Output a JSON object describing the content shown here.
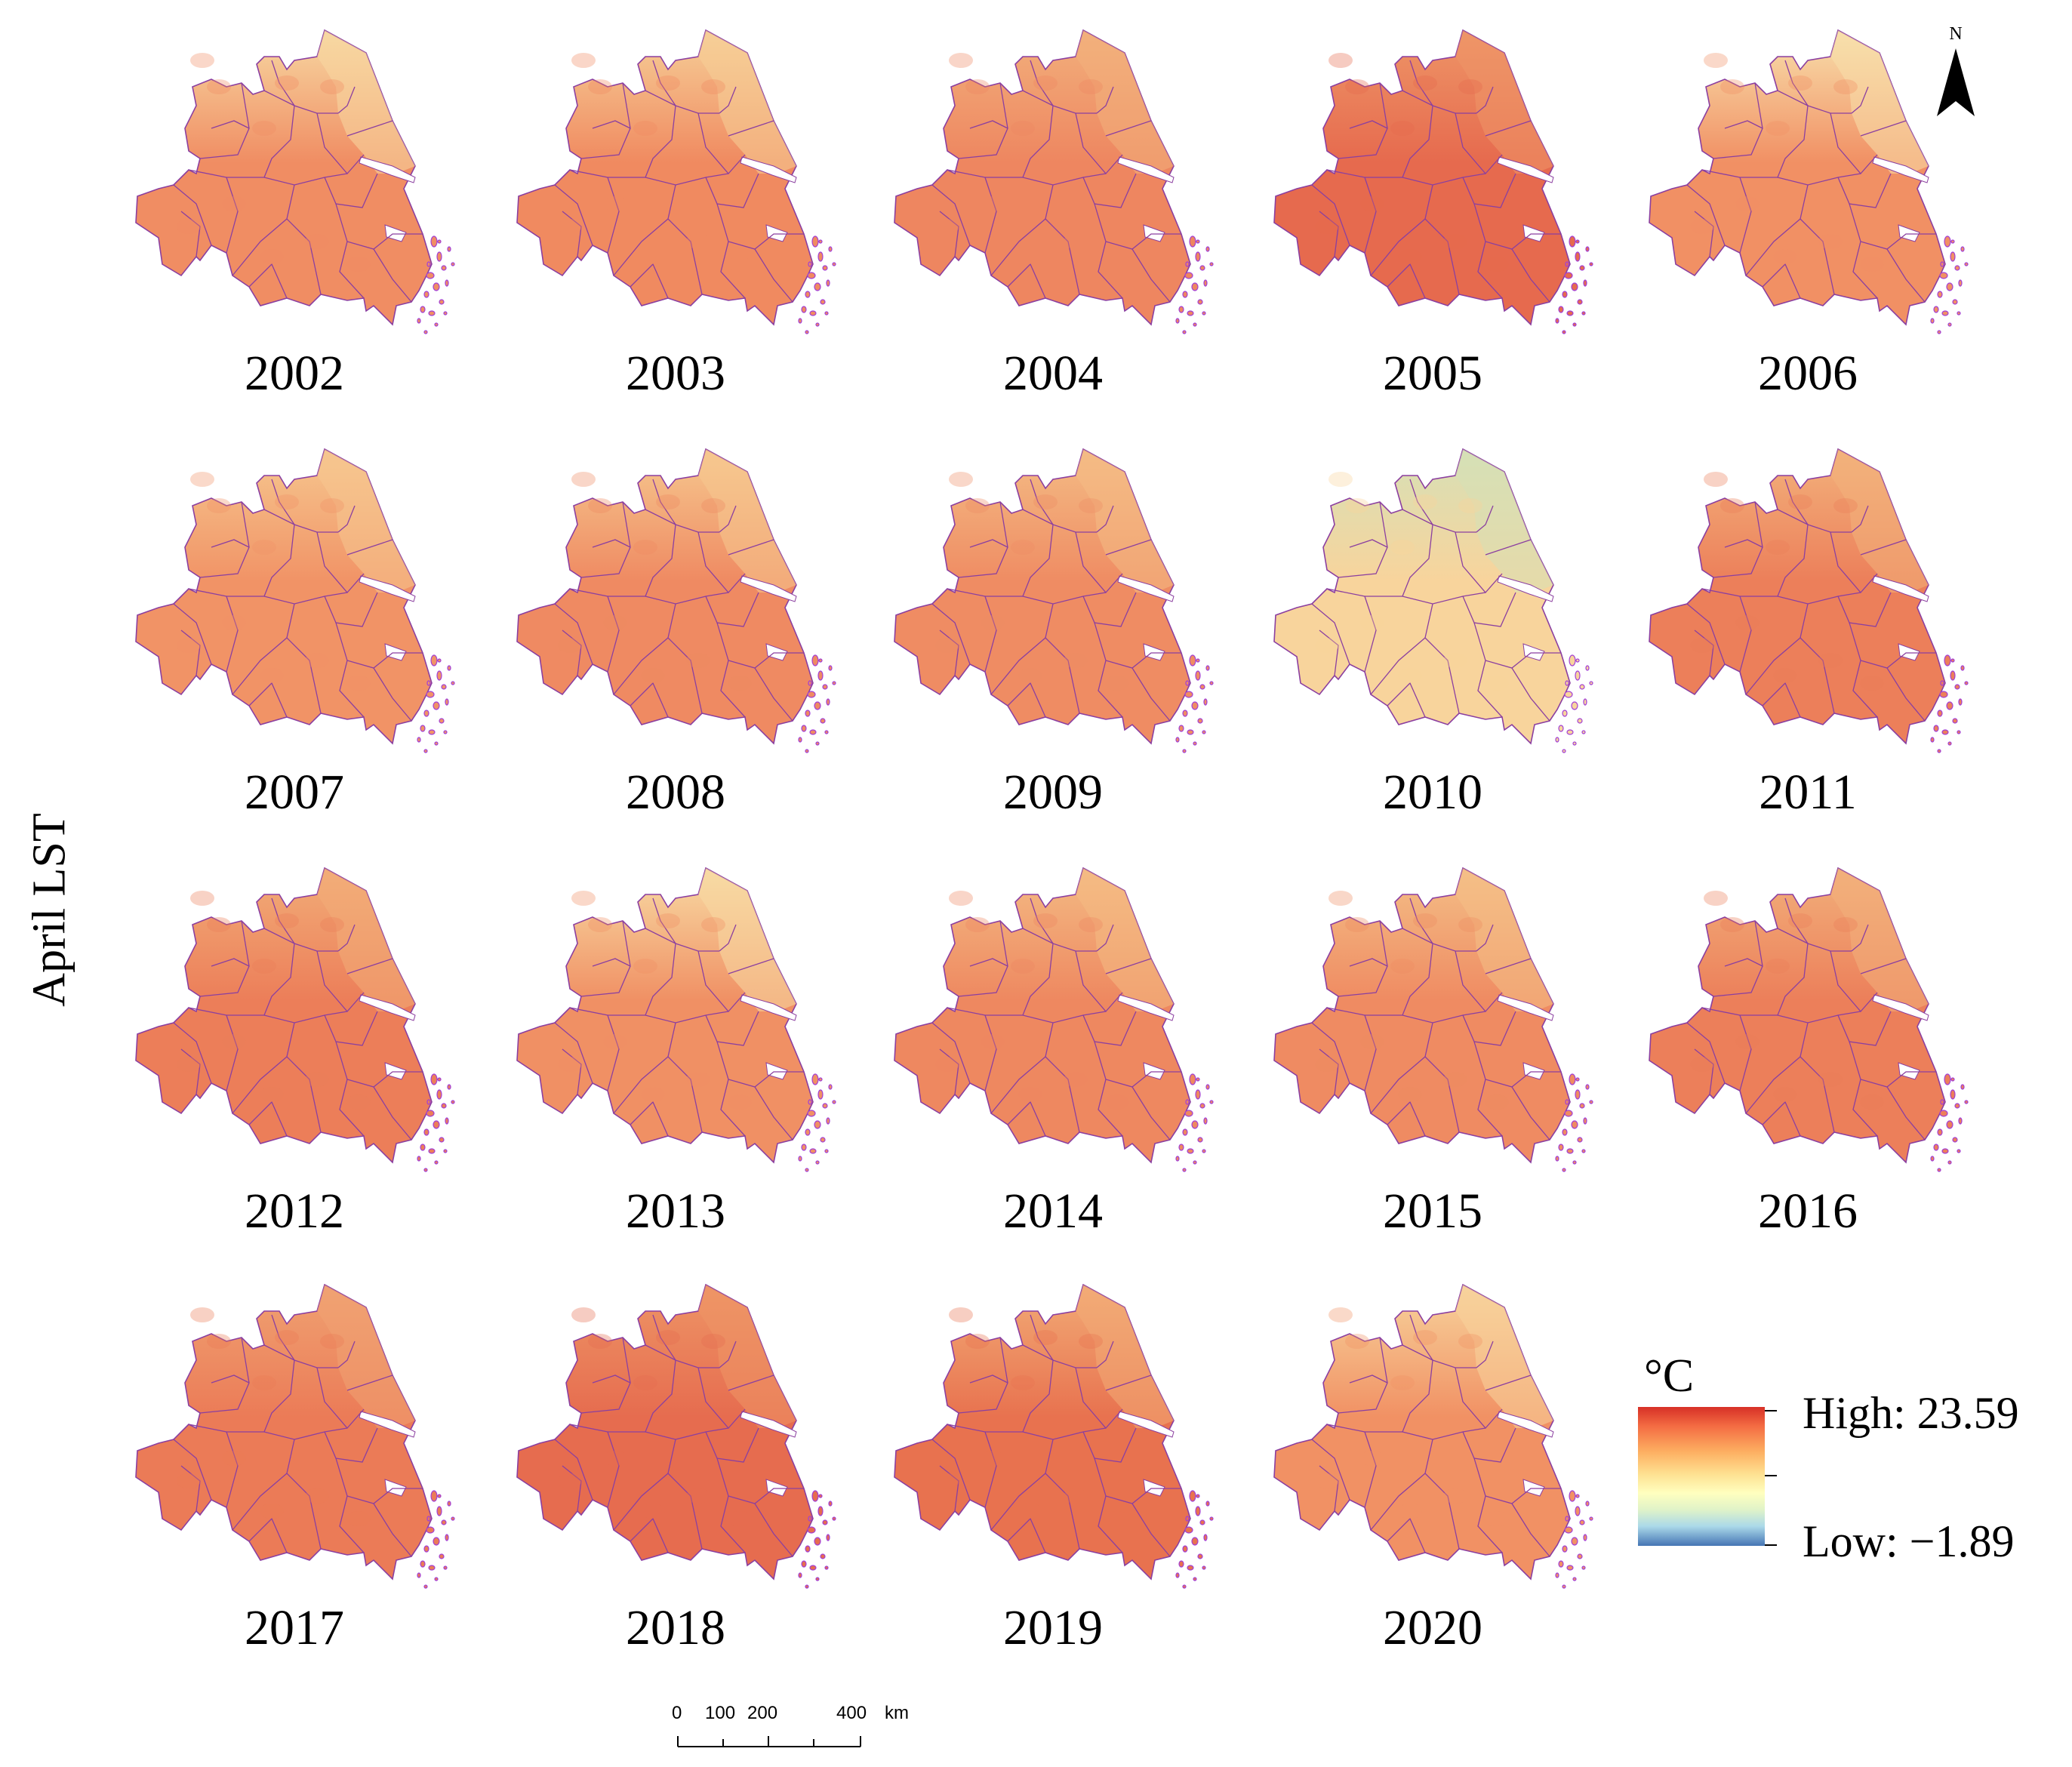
{
  "figure": {
    "ylabel": "April LST"
  },
  "panels": [
    {
      "year": "2002",
      "tone": "#f08d63",
      "north_tone": "#f7d8a2"
    },
    {
      "year": "2003",
      "tone": "#f08a60",
      "north_tone": "#f6cf98"
    },
    {
      "year": "2004",
      "tone": "#ee8660",
      "north_tone": "#f2b07c"
    },
    {
      "year": "2005",
      "tone": "#e66a4e",
      "north_tone": "#ee9567"
    },
    {
      "year": "2006",
      "tone": "#f19064",
      "north_tone": "#f8e0ac"
    },
    {
      "year": "2007",
      "tone": "#f19366",
      "north_tone": "#f6c78f"
    },
    {
      "year": "2008",
      "tone": "#ef8a62",
      "north_tone": "#f6c88f"
    },
    {
      "year": "2009",
      "tone": "#ef8c63",
      "north_tone": "#f4bc85"
    },
    {
      "year": "2010",
      "tone": "#f8d49c",
      "north_tone": "#d6e0b6"
    },
    {
      "year": "2011",
      "tone": "#ec7f5a",
      "north_tone": "#f3b27c"
    },
    {
      "year": "2012",
      "tone": "#ec7e59",
      "north_tone": "#f2ad78"
    },
    {
      "year": "2013",
      "tone": "#f09064",
      "north_tone": "#f8dba4"
    },
    {
      "year": "2014",
      "tone": "#ee8860",
      "north_tone": "#f4bb84"
    },
    {
      "year": "2015",
      "tone": "#ef8b62",
      "north_tone": "#f4bf87"
    },
    {
      "year": "2016",
      "tone": "#ec7f5a",
      "north_tone": "#f2b07b"
    },
    {
      "year": "2017",
      "tone": "#eb7b57",
      "north_tone": "#f0a272"
    },
    {
      "year": "2018",
      "tone": "#e66c4f",
      "north_tone": "#ee9566"
    },
    {
      "year": "2019",
      "tone": "#e8724f",
      "north_tone": "#f2ab76"
    },
    {
      "year": "2020",
      "tone": "#f19164",
      "north_tone": "#f7d39c"
    }
  ],
  "legend": {
    "unit": "°C",
    "high_label": "High: 23.59",
    "low_label": "Low: −1.89",
    "high_value": 23.59,
    "low_value": -1.89,
    "colors": [
      "#d73027",
      "#f46d43",
      "#fdae61",
      "#fee090",
      "#ffffbf",
      "#e0f3c8",
      "#abd9e9",
      "#4575b4"
    ]
  },
  "north_arrow": {
    "label": "N"
  },
  "scale_bar": {
    "labels": [
      "0",
      "100",
      "200",
      "400"
    ],
    "unit": "km"
  },
  "colors": {
    "boundary": "#8b3fa0",
    "island": "#a23fd6"
  }
}
